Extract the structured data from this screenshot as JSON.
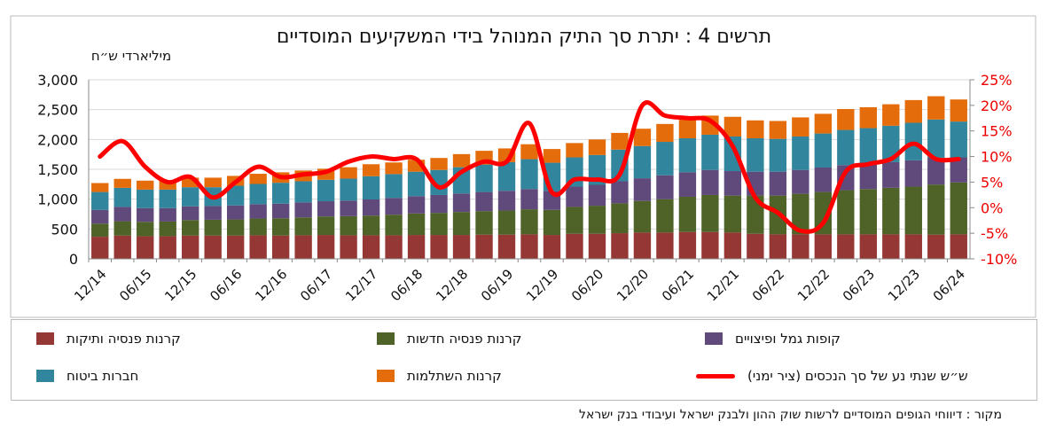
{
  "chart_data": {
    "type": "bar",
    "title": "תרשים 4 : יתרת סך התיק המנוהל בידי המשקיעים המוסדיים",
    "ylabel": "מיליארדי ש״ח",
    "ylim": [
      0,
      3000
    ],
    "y2lim": [
      -10,
      25
    ],
    "yticks": [
      "0",
      "500",
      "1,000",
      "1,500",
      "2,000",
      "2,500",
      "3,000"
    ],
    "y2ticks": [
      "-10%",
      "-5%",
      "0%",
      "5%",
      "10%",
      "15%",
      "20%",
      "25%"
    ],
    "xticklabels": [
      "12/14",
      "06/15",
      "12/15",
      "06/16",
      "12/16",
      "06/17",
      "12/17",
      "06/18",
      "12/18",
      "06/19",
      "12/19",
      "06/20",
      "12/20",
      "06/21",
      "12/21",
      "06/22",
      "12/22",
      "06/23",
      "12/23",
      "06/24"
    ],
    "series": [
      {
        "name": "קרנות פנסיה ותיקות",
        "color": "#953735",
        "values": [
          370,
          390,
          380,
          380,
          390,
          390,
          390,
          395,
          390,
          395,
          400,
          395,
          395,
          395,
          400,
          400,
          400,
          405,
          405,
          410,
          400,
          420,
          420,
          430,
          440,
          440,
          450,
          450,
          440,
          420,
          410,
          410,
          410,
          410,
          410,
          410,
          410,
          405,
          410
        ]
      },
      {
        "name": "קרנות פנסיה חדשות",
        "color": "#4f6228",
        "values": [
          220,
          240,
          240,
          245,
          260,
          265,
          270,
          280,
          290,
          300,
          310,
          320,
          330,
          345,
          360,
          370,
          385,
          395,
          405,
          420,
          420,
          450,
          470,
          500,
          530,
          560,
          590,
          620,
          620,
          640,
          650,
          680,
          710,
          740,
          760,
          780,
          800,
          840,
          870
        ]
      },
      {
        "name": "קופות גמל ופיצויים",
        "color": "#604a7b",
        "values": [
          230,
          240,
          230,
          225,
          230,
          230,
          235,
          240,
          245,
          250,
          255,
          260,
          270,
          280,
          290,
          300,
          310,
          320,
          330,
          340,
          320,
          340,
          350,
          370,
          380,
          400,
          410,
          420,
          410,
          400,
          400,
          400,
          410,
          420,
          420,
          430,
          440,
          450,
          420
        ]
      },
      {
        "name": "חברות ביטוח",
        "color": "#31859c",
        "values": [
          300,
          320,
          310,
          310,
          320,
          315,
          330,
          340,
          350,
          355,
          360,
          370,
          390,
          400,
          410,
          420,
          440,
          460,
          480,
          500,
          470,
          490,
          500,
          530,
          540,
          560,
          570,
          590,
          580,
          560,
          550,
          560,
          570,
          590,
          600,
          610,
          630,
          640,
          600
        ]
      },
      {
        "name": "קרנות השתלמות",
        "color": "#e46c0a",
        "values": [
          150,
          150,
          150,
          150,
          160,
          160,
          165,
          170,
          175,
          180,
          185,
          190,
          200,
          195,
          200,
          200,
          220,
          230,
          230,
          250,
          230,
          240,
          260,
          280,
          290,
          300,
          310,
          320,
          330,
          300,
          300,
          320,
          330,
          350,
          350,
          360,
          380,
          390,
          370
        ]
      },
      {
        "name": "ש״ש שנתי נע של סך הנכסים (ציר ימני)",
        "color": "#ff0000",
        "type": "line",
        "axis": "right",
        "values": [
          10,
          13,
          8,
          5,
          6,
          2,
          5,
          8,
          6,
          6.5,
          7,
          9,
          10,
          9.5,
          9.5,
          4,
          7,
          9,
          9,
          16.5,
          3,
          5.5,
          5.5,
          6.5,
          20,
          18,
          17.5,
          17,
          12,
          2,
          -1,
          -4.5,
          -3,
          7,
          8.5,
          9.5,
          12.5,
          9.5,
          9.5
        ]
      }
    ]
  },
  "legend_labels": [
    "קרנות פנסיה ותיקות",
    "קרנות פנסיה חדשות",
    "קופות גמל ופיצויים",
    "חברות ביטוח",
    "קרנות השתלמות",
    "ש״ש שנתי נע של סך הנכסים (ציר ימני)"
  ],
  "source": "מקור : דיווחי הגופים המוסדיים לרשות שוק ההון ולבנק ישראל ועיבודי בנק ישראל"
}
